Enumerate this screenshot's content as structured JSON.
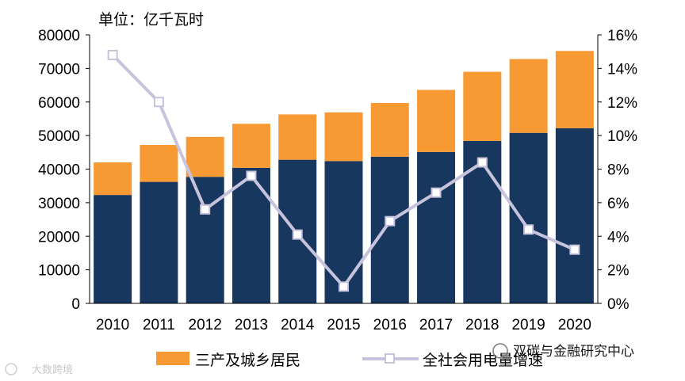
{
  "chart_data": {
    "type": "bar",
    "stacked": true,
    "unit_label": "单位：亿千瓦时",
    "categories": [
      "2010",
      "2011",
      "2012",
      "2013",
      "2014",
      "2015",
      "2016",
      "2017",
      "2018",
      "2019",
      "2020"
    ],
    "series": [
      {
        "name": "",
        "kind": "bar",
        "axis": "left",
        "color": "#17375E",
        "values": [
          32300,
          36200,
          37700,
          40400,
          42800,
          42400,
          43700,
          45100,
          48400,
          50800,
          52200
        ]
      },
      {
        "name": "三产及城乡居民",
        "kind": "bar",
        "axis": "left",
        "color": "#F79A34",
        "values": [
          9700,
          11000,
          11900,
          13100,
          13500,
          14500,
          16000,
          18500,
          20600,
          22000,
          23000
        ]
      },
      {
        "name": "全社会用电量增速",
        "kind": "line",
        "axis": "right",
        "color": "#C7C3DC",
        "unit": "%",
        "values": [
          14.8,
          12.0,
          5.6,
          7.6,
          4.1,
          1.0,
          4.9,
          6.6,
          8.4,
          4.4,
          3.2
        ]
      }
    ],
    "left_axis": {
      "ylim": [
        0,
        80000
      ],
      "ticks": [
        "0",
        "10000",
        "20000",
        "30000",
        "40000",
        "50000",
        "60000",
        "70000",
        "80000"
      ]
    },
    "right_axis": {
      "ylim": [
        0,
        16
      ],
      "ticks": [
        "0%",
        "2%",
        "4%",
        "6%",
        "8%",
        "10%",
        "12%",
        "14%",
        "16%"
      ]
    },
    "legend": {
      "position": "bottom",
      "entries": [
        "三产及城乡居民",
        "全社会用电量增速"
      ]
    }
  },
  "watermarks": {
    "left": "大数跨境",
    "right": "双碳与金融研究中心"
  }
}
